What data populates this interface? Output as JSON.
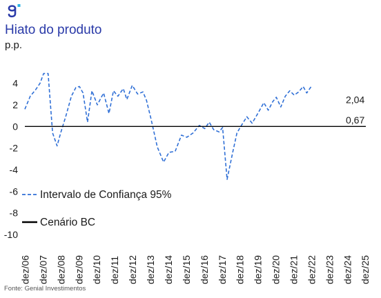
{
  "header": {
    "title": "Hiato do produto",
    "subtitle": "p.p."
  },
  "footer": {
    "source": "Fonte: Genial Investimentos"
  },
  "chart_data": {
    "type": "line",
    "title": "Hiato do produto",
    "ylabel": "p.p.",
    "ylim": [
      -10,
      5
    ],
    "yticks": [
      4,
      2,
      0,
      -2,
      -4,
      -6,
      -8,
      -10
    ],
    "xlim": [
      2006.9,
      2025.95
    ],
    "xticks": [
      {
        "label": "dez/06",
        "x": 2006.92
      },
      {
        "label": "dez/07",
        "x": 2007.92
      },
      {
        "label": "dez/08",
        "x": 2008.92
      },
      {
        "label": "dez/09",
        "x": 2009.92
      },
      {
        "label": "dez/10",
        "x": 2010.92
      },
      {
        "label": "dez/11",
        "x": 2011.92
      },
      {
        "label": "dez/12",
        "x": 2012.92
      },
      {
        "label": "dez/13",
        "x": 2013.92
      },
      {
        "label": "dez/14",
        "x": 2014.92
      },
      {
        "label": "dez/15",
        "x": 2015.92
      },
      {
        "label": "dez/16",
        "x": 2016.92
      },
      {
        "label": "dez/17",
        "x": 2017.92
      },
      {
        "label": "dez/18",
        "x": 2018.92
      },
      {
        "label": "dez/19",
        "x": 2019.92
      },
      {
        "label": "dez/20",
        "x": 2020.92
      },
      {
        "label": "dez/21",
        "x": 2021.92
      },
      {
        "label": "dez/22",
        "x": 2022.92
      },
      {
        "label": "dez/23",
        "x": 2023.92
      },
      {
        "label": "dez/24",
        "x": 2024.92
      },
      {
        "label": "dez/25",
        "x": 2025.92
      }
    ],
    "legend": [
      {
        "name": "Intervalo de Confiança 95%",
        "style": "dashed",
        "color": "#2f6fd6"
      },
      {
        "name": "Cenário BC",
        "style": "solid",
        "color": "#000000"
      }
    ],
    "legend_position": "bottom-left",
    "annotations": [
      {
        "text": "2,04",
        "series": "Central",
        "x": 2024.6,
        "y": 2.04
      },
      {
        "text": "0,67",
        "series": "Cenário BC",
        "x": 2024.6,
        "y": 0.67
      }
    ],
    "series": [
      {
        "name": "Intervalo de Confiança 95%",
        "role": "upper95",
        "style": "dashed",
        "color": "#2f6fd6",
        "points": [
          [
            2006.9,
            1.6
          ],
          [
            2007.2,
            2.8
          ],
          [
            2007.5,
            3.4
          ],
          [
            2007.75,
            4.0
          ],
          [
            2007.95,
            4.9
          ],
          [
            2008.2,
            4.9
          ],
          [
            2008.45,
            -0.6
          ],
          [
            2008.7,
            -1.8
          ],
          [
            2008.9,
            -0.6
          ],
          [
            2009.2,
            1.0
          ],
          [
            2009.5,
            2.8
          ],
          [
            2009.75,
            3.6
          ],
          [
            2009.95,
            3.7
          ],
          [
            2010.15,
            3.1
          ],
          [
            2010.4,
            0.4
          ],
          [
            2010.65,
            3.3
          ],
          [
            2010.95,
            2.0
          ],
          [
            2011.3,
            3.1
          ],
          [
            2011.6,
            1.2
          ],
          [
            2011.85,
            3.3
          ],
          [
            2012.1,
            2.8
          ],
          [
            2012.4,
            3.5
          ],
          [
            2012.6,
            2.5
          ],
          [
            2012.9,
            3.8
          ],
          [
            2013.2,
            3.0
          ],
          [
            2013.5,
            3.2
          ],
          [
            2013.7,
            2.4
          ],
          [
            2013.95,
            0.7
          ],
          [
            2014.3,
            -1.9
          ],
          [
            2014.65,
            -3.3
          ],
          [
            2014.95,
            -2.4
          ],
          [
            2015.3,
            -2.3
          ],
          [
            2015.65,
            -0.8
          ],
          [
            2015.95,
            -1.0
          ],
          [
            2016.3,
            -0.6
          ],
          [
            2016.65,
            0.1
          ],
          [
            2016.95,
            -0.2
          ],
          [
            2017.2,
            0.4
          ],
          [
            2017.45,
            -0.3
          ],
          [
            2017.75,
            -0.5
          ],
          [
            2017.95,
            -0.1
          ],
          [
            2018.2,
            -4.9
          ],
          [
            2018.5,
            -2.5
          ],
          [
            2018.75,
            -0.6
          ],
          [
            2019.0,
            0.1
          ],
          [
            2019.3,
            0.9
          ],
          [
            2019.6,
            0.3
          ],
          [
            2019.95,
            1.3
          ],
          [
            2020.25,
            2.2
          ],
          [
            2020.5,
            1.5
          ],
          [
            2020.75,
            2.3
          ],
          [
            2020.95,
            2.7
          ],
          [
            2021.2,
            1.8
          ],
          [
            2021.45,
            2.8
          ],
          [
            2021.7,
            3.3
          ],
          [
            2021.95,
            2.9
          ],
          [
            2022.2,
            3.2
          ],
          [
            2022.45,
            3.7
          ],
          [
            2022.65,
            3.1
          ],
          [
            2022.9,
            3.7
          ]
        ]
      }
    ]
  }
}
